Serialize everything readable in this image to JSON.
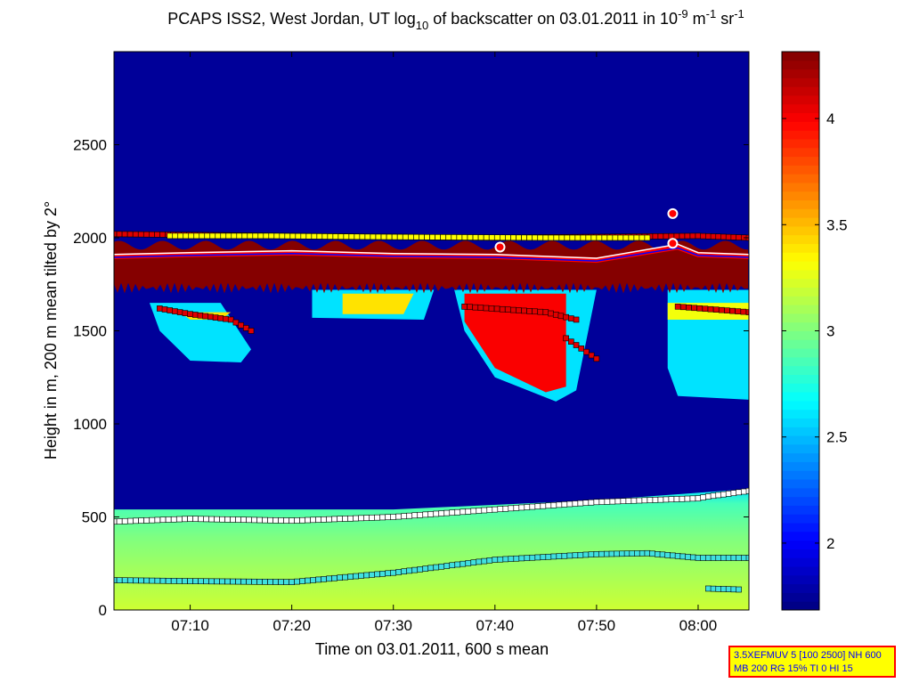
{
  "chart_data": {
    "type": "heatmap",
    "title": "PCAPS ISS2, West Jordan, UT log10 of backscatter on 03.01.2011 in 10^-9 m^-1 sr^-1",
    "title_parts": {
      "a": "PCAPS ISS2, West Jordan, UT log",
      "b": "10",
      "c": " of backscatter on 03.01.2011 in 10",
      "d": "-9",
      "e": " m",
      "f": "-1",
      "g": " sr",
      "h": "-1"
    },
    "xlabel": "Time on 03.01.2011, 600 s mean",
    "ylabel": "Height in m, 200 m mean tilted by 2°",
    "xlim": [
      "07:02:30",
      "08:05:00"
    ],
    "ylim": [
      0,
      3000
    ],
    "xticks": [
      "07:10",
      "07:20",
      "07:30",
      "07:40",
      "07:50",
      "08:00"
    ],
    "yticks": [
      0,
      500,
      1000,
      1500,
      2000,
      2500
    ],
    "colorbar": {
      "range": [
        1.685,
        4.315
      ],
      "ticks": [
        "2",
        "2.5",
        "3",
        "3.5",
        "4"
      ],
      "colormap": "jet"
    },
    "background_value": 1.75,
    "surface_layer": {
      "top_value": 2.6,
      "mid_value": 3.0,
      "bottom_value": 3.2,
      "top": [
        [
          "07:02:30",
          540
        ],
        [
          "07:30",
          540
        ],
        [
          "07:50",
          590
        ],
        [
          "08:05",
          650
        ]
      ]
    },
    "clouds": [
      {
        "value": 2.6,
        "points": [
          [
            "07:06",
            1650
          ],
          [
            "07:13",
            1650
          ],
          [
            "07:16",
            1400
          ],
          [
            "07:15",
            1330
          ],
          [
            "07:10",
            1340
          ],
          [
            "07:07",
            1500
          ]
        ]
      },
      {
        "value": 3.4,
        "points": [
          [
            "07:09",
            1600
          ],
          [
            "07:14",
            1600
          ],
          [
            "07:13",
            1560
          ],
          [
            "07:10",
            1560
          ]
        ]
      },
      {
        "value": 2.6,
        "points": [
          [
            "07:22",
            1720
          ],
          [
            "07:34",
            1720
          ],
          [
            "07:33",
            1560
          ],
          [
            "07:22",
            1570
          ]
        ]
      },
      {
        "value": 3.4,
        "points": [
          [
            "07:25",
            1700
          ],
          [
            "07:32",
            1700
          ],
          [
            "07:31",
            1590
          ],
          [
            "07:25",
            1590
          ]
        ]
      },
      {
        "value": 2.6,
        "points": [
          [
            "07:36",
            1720
          ],
          [
            "07:50",
            1720
          ],
          [
            "07:48",
            1180
          ],
          [
            "07:46",
            1120
          ],
          [
            "07:40",
            1250
          ],
          [
            "07:37",
            1500
          ]
        ]
      },
      {
        "value": 4.0,
        "points": [
          [
            "07:37",
            1700
          ],
          [
            "07:47",
            1700
          ],
          [
            "07:47",
            1200
          ],
          [
            "07:45",
            1170
          ],
          [
            "07:40",
            1300
          ],
          [
            "07:37",
            1550
          ]
        ]
      },
      {
        "value": 2.6,
        "points": [
          [
            "07:57",
            1720
          ],
          [
            "08:05",
            1720
          ],
          [
            "08:05",
            1130
          ],
          [
            "07:58",
            1150
          ],
          [
            "07:57",
            1300
          ]
        ]
      },
      {
        "value": 3.3,
        "points": [
          [
            "07:57",
            1650
          ],
          [
            "08:05",
            1650
          ],
          [
            "08:05",
            1560
          ],
          [
            "07:57",
            1560
          ]
        ]
      }
    ],
    "aerosol_band": {
      "value": 4.3,
      "bottom": 1730,
      "top": 1960
    },
    "series": [
      {
        "marker": "square",
        "color": "#ffffff",
        "points": [
          [
            "07:02:30",
            475
          ],
          [
            "07:10",
            490
          ],
          [
            "07:20",
            480
          ],
          [
            "07:30",
            500
          ],
          [
            "07:40",
            540
          ],
          [
            "07:50",
            580
          ],
          [
            "08:00",
            600
          ],
          [
            "08:01",
            610
          ],
          [
            "08:05",
            640
          ]
        ]
      },
      {
        "marker": "square",
        "color": "#40e0e0",
        "points": [
          [
            "07:02:30",
            160
          ],
          [
            "07:10",
            155
          ],
          [
            "07:20",
            150
          ],
          [
            "07:30",
            200
          ],
          [
            "07:40",
            270
          ],
          [
            "07:50",
            300
          ],
          [
            "07:55",
            305
          ],
          [
            "08:00",
            280
          ],
          [
            "08:05",
            280
          ]
        ]
      },
      {
        "marker": "square",
        "color": "#40e0e0",
        "points": [
          [
            "08:01",
            115
          ],
          [
            "08:04",
            110
          ]
        ]
      },
      {
        "marker": "square",
        "color": "#e00000",
        "points": [
          [
            "07:02:30",
            2020
          ],
          [
            "07:20",
            2010
          ],
          [
            "07:40",
            2000
          ],
          [
            "08:00",
            2010
          ],
          [
            "08:05",
            2000
          ]
        ]
      },
      {
        "marker": "square",
        "color": "#ffff00",
        "points": [
          [
            "07:08",
            2010
          ],
          [
            "07:18",
            2010
          ],
          [
            "07:28",
            2005
          ],
          [
            "07:45",
            2000
          ],
          [
            "07:55",
            2000
          ]
        ]
      },
      {
        "marker": "square",
        "color": "#e00000",
        "points": [
          [
            "07:07",
            1620
          ],
          [
            "07:10",
            1590
          ],
          [
            "07:14",
            1560
          ],
          [
            "07:16",
            1500
          ]
        ]
      },
      {
        "marker": "square",
        "color": "#e00000",
        "points": [
          [
            "07:37",
            1630
          ],
          [
            "07:45",
            1600
          ],
          [
            "07:48",
            1560
          ]
        ]
      },
      {
        "marker": "square",
        "color": "#e00000",
        "points": [
          [
            "07:47",
            1460
          ],
          [
            "07:50",
            1350
          ]
        ]
      },
      {
        "marker": "square",
        "color": "#e00000",
        "points": [
          [
            "07:58",
            1630
          ],
          [
            "08:05",
            1600
          ]
        ]
      }
    ],
    "lines": [
      {
        "color": "#ff0000",
        "width": 6,
        "points": [
          [
            "07:02:30",
            1900
          ],
          [
            "07:10",
            1910
          ],
          [
            "07:20",
            1920
          ],
          [
            "07:30",
            1905
          ],
          [
            "07:40",
            1900
          ],
          [
            "07:50",
            1880
          ],
          [
            "07:58",
            1950
          ],
          [
            "08:00",
            1910
          ],
          [
            "08:05",
            1900
          ]
        ]
      },
      {
        "color": "#ffffff",
        "width": 1.5,
        "points": [
          [
            "07:02:30",
            1910
          ],
          [
            "07:10",
            1920
          ],
          [
            "07:20",
            1930
          ],
          [
            "07:30",
            1915
          ],
          [
            "07:40",
            1910
          ],
          [
            "07:50",
            1890
          ],
          [
            "07:58",
            1965
          ],
          [
            "08:00",
            1920
          ],
          [
            "08:05",
            1910
          ]
        ]
      },
      {
        "color": "#0000ff",
        "width": 1.5,
        "points": [
          [
            "07:02:30",
            1895
          ],
          [
            "07:10",
            1905
          ],
          [
            "07:20",
            1915
          ],
          [
            "07:30",
            1900
          ],
          [
            "07:40",
            1895
          ],
          [
            "07:50",
            1875
          ],
          [
            "07:58",
            1945
          ],
          [
            "08:00",
            1905
          ],
          [
            "08:05",
            1895
          ]
        ]
      }
    ],
    "circles": [
      [
        "07:57:30",
        2130
      ],
      [
        "07:57:30",
        1970
      ],
      [
        "07:40:30",
        1950
      ]
    ]
  },
  "info_box": {
    "line1": "3.5XEFMUV 5 [100 2500] NH 600",
    "line2": "MB 200 RG 15% TI 0 HI 15"
  }
}
